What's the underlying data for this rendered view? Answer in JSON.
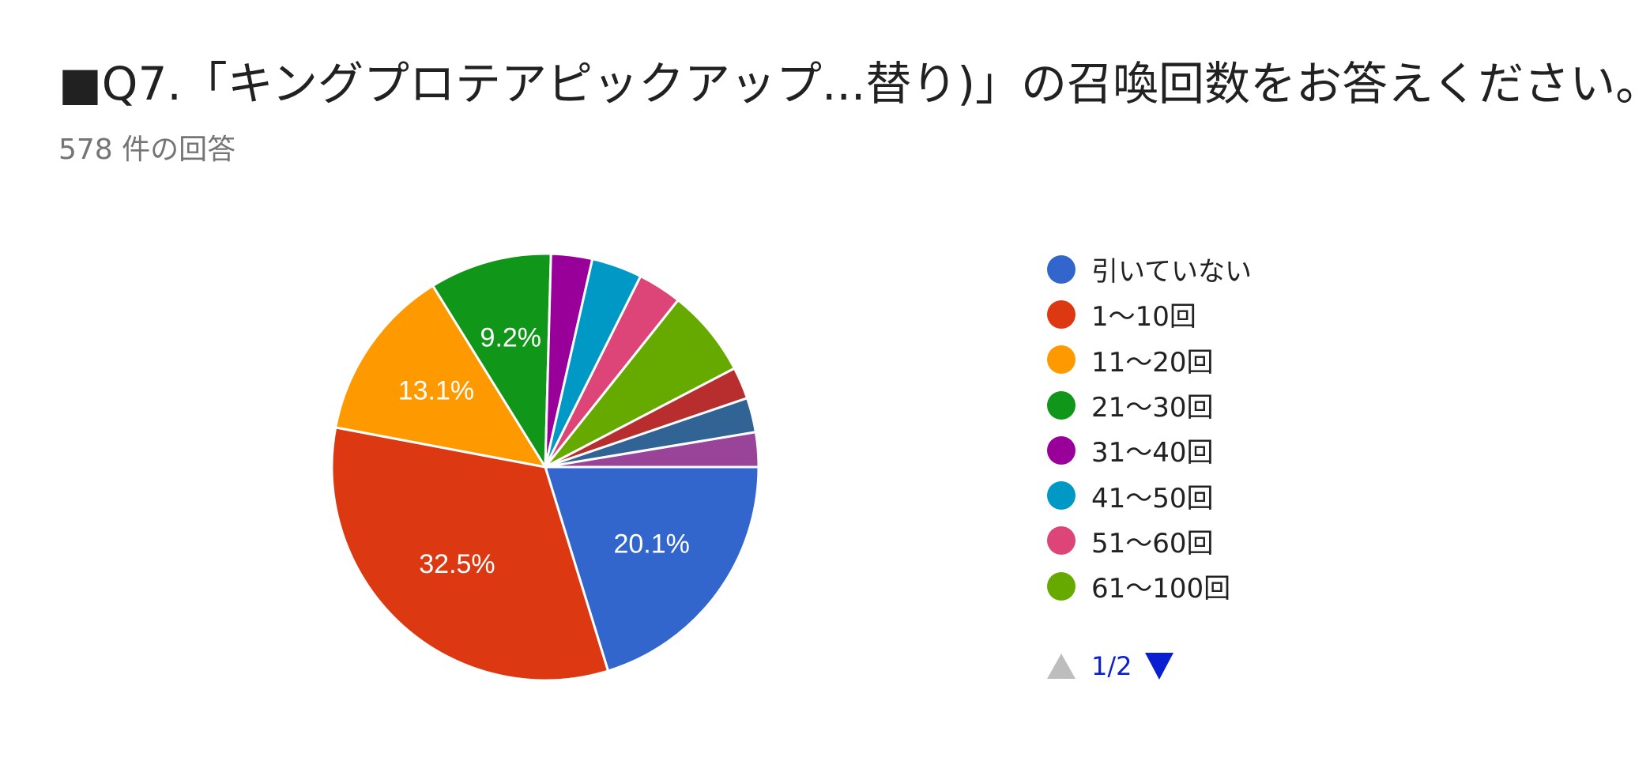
{
  "header": {
    "title": "■Q7.「キングプロテアピックアップ...替り)」の召喚回数をお答えください。",
    "response_count": "578 件の回答"
  },
  "chart_data": {
    "type": "pie",
    "start": "3 o'clock, clockwise",
    "slices": [
      {
        "label": "引いていない",
        "value": 20.1,
        "color": "#3366cc",
        "show_label": true
      },
      {
        "label": "1〜10回",
        "value": 32.5,
        "color": "#dc3912",
        "show_label": true
      },
      {
        "label": "11〜20回",
        "value": 13.1,
        "color": "#ff9900",
        "show_label": true
      },
      {
        "label": "21〜30回",
        "value": 9.2,
        "color": "#109618",
        "show_label": true
      },
      {
        "label": "31〜40回",
        "value": 3.1,
        "color": "#990099",
        "show_label": false
      },
      {
        "label": "41〜50回",
        "value": 3.8,
        "color": "#0099c6",
        "show_label": false
      },
      {
        "label": "51〜60回",
        "value": 3.3,
        "color": "#dd4477",
        "show_label": false
      },
      {
        "label": "61〜100回",
        "value": 6.6,
        "color": "#66aa00",
        "show_label": false
      },
      {
        "label": "",
        "value": 2.4,
        "color": "#b82e2e",
        "show_label": false
      },
      {
        "label": "",
        "value": 2.6,
        "color": "#316395",
        "show_label": false
      },
      {
        "label": "",
        "value": 2.6,
        "color": "#994499",
        "show_label": false
      }
    ]
  },
  "legend": {
    "items": [
      {
        "label": "引いていない",
        "color": "#3366cc"
      },
      {
        "label": "1〜10回",
        "color": "#dc3912"
      },
      {
        "label": "11〜20回",
        "color": "#ff9900"
      },
      {
        "label": "21〜30回",
        "color": "#109618"
      },
      {
        "label": "31〜40回",
        "color": "#990099"
      },
      {
        "label": "41〜50回",
        "color": "#0099c6"
      },
      {
        "label": "51〜60回",
        "color": "#dd4477"
      },
      {
        "label": "61〜100回",
        "color": "#66aa00"
      }
    ],
    "pager": {
      "text": "1/2",
      "prev_icon": "triangle-up-icon",
      "next_icon": "triangle-down-icon"
    }
  }
}
